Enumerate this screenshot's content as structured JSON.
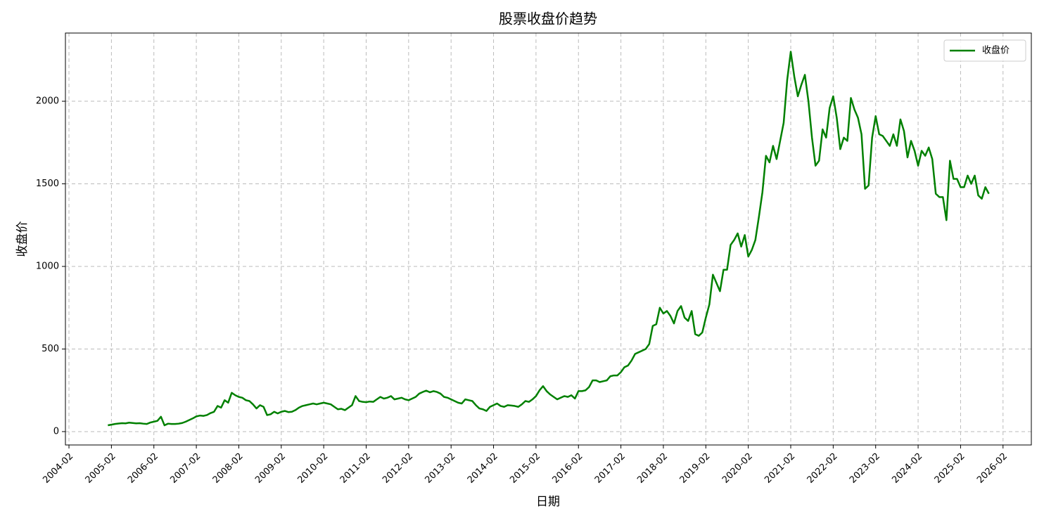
{
  "chart_data": {
    "type": "line",
    "title": "股票收盘价趋势",
    "x_label": "日期",
    "y_label": "收盘价",
    "x": [
      "2005-01",
      "2005-02",
      "2005-03",
      "2005-04",
      "2005-05",
      "2005-06",
      "2005-07",
      "2005-08",
      "2005-09",
      "2005-10",
      "2005-11",
      "2005-12",
      "2006-01",
      "2006-02",
      "2006-03",
      "2006-04",
      "2006-05",
      "2006-06",
      "2006-07",
      "2006-08",
      "2006-09",
      "2006-10",
      "2006-11",
      "2006-12",
      "2007-01",
      "2007-02",
      "2007-03",
      "2007-04",
      "2007-05",
      "2007-06",
      "2007-07",
      "2007-08",
      "2007-09",
      "2007-10",
      "2007-11",
      "2007-12",
      "2008-01",
      "2008-02",
      "2008-03",
      "2008-04",
      "2008-05",
      "2008-06",
      "2008-07",
      "2008-08",
      "2008-09",
      "2008-10",
      "2008-11",
      "2008-12",
      "2009-01",
      "2009-02",
      "2009-03",
      "2009-04",
      "2009-05",
      "2009-06",
      "2009-07",
      "2009-08",
      "2009-09",
      "2009-10",
      "2009-11",
      "2009-12",
      "2010-01",
      "2010-02",
      "2010-03",
      "2010-04",
      "2010-05",
      "2010-06",
      "2010-07",
      "2010-08",
      "2010-09",
      "2010-10",
      "2010-11",
      "2010-12",
      "2011-01",
      "2011-02",
      "2011-03",
      "2011-04",
      "2011-05",
      "2011-06",
      "2011-07",
      "2011-08",
      "2011-09",
      "2011-10",
      "2011-11",
      "2011-12",
      "2012-01",
      "2012-02",
      "2012-03",
      "2012-04",
      "2012-05",
      "2012-06",
      "2012-07",
      "2012-08",
      "2012-09",
      "2012-10",
      "2012-11",
      "2012-12",
      "2013-01",
      "2013-02",
      "2013-03",
      "2013-04",
      "2013-05",
      "2013-06",
      "2013-07",
      "2013-08",
      "2013-09",
      "2013-10",
      "2013-11",
      "2013-12",
      "2014-01",
      "2014-02",
      "2014-03",
      "2014-04",
      "2014-05",
      "2014-06",
      "2014-07",
      "2014-08",
      "2014-09",
      "2014-10",
      "2014-11",
      "2014-12",
      "2015-01",
      "2015-02",
      "2015-03",
      "2015-04",
      "2015-05",
      "2015-06",
      "2015-07",
      "2015-08",
      "2015-09",
      "2015-10",
      "2015-11",
      "2015-12",
      "2016-01",
      "2016-02",
      "2016-03",
      "2016-04",
      "2016-05",
      "2016-06",
      "2016-07",
      "2016-08",
      "2016-09",
      "2016-10",
      "2016-11",
      "2016-12",
      "2017-01",
      "2017-02",
      "2017-03",
      "2017-04",
      "2017-05",
      "2017-06",
      "2017-07",
      "2017-08",
      "2017-09",
      "2017-10",
      "2017-11",
      "2017-12",
      "2018-01",
      "2018-02",
      "2018-03",
      "2018-04",
      "2018-05",
      "2018-06",
      "2018-07",
      "2018-08",
      "2018-09",
      "2018-10",
      "2018-11",
      "2018-12",
      "2019-01",
      "2019-02",
      "2019-03",
      "2019-04",
      "2019-05",
      "2019-06",
      "2019-07",
      "2019-08",
      "2019-09",
      "2019-10",
      "2019-11",
      "2019-12",
      "2020-01",
      "2020-02",
      "2020-03",
      "2020-04",
      "2020-05",
      "2020-06",
      "2020-07",
      "2020-08",
      "2020-09",
      "2020-10",
      "2020-11",
      "2020-12",
      "2021-01",
      "2021-02",
      "2021-03",
      "2021-04",
      "2021-05",
      "2021-06",
      "2021-07",
      "2021-08",
      "2021-09",
      "2021-10",
      "2021-11",
      "2021-12",
      "2022-01",
      "2022-02",
      "2022-03",
      "2022-04",
      "2022-05",
      "2022-06",
      "2022-07",
      "2022-08",
      "2022-09",
      "2022-10",
      "2022-11",
      "2022-12",
      "2023-01",
      "2023-02",
      "2023-03",
      "2023-04",
      "2023-05",
      "2023-06",
      "2023-07",
      "2023-08",
      "2023-09",
      "2023-10",
      "2023-11",
      "2023-12",
      "2024-01",
      "2024-02",
      "2024-03",
      "2024-04",
      "2024-05",
      "2024-06",
      "2024-07",
      "2024-08",
      "2024-09",
      "2024-10",
      "2024-11",
      "2024-12",
      "2025-01",
      "2025-02",
      "2025-03",
      "2025-04",
      "2025-05",
      "2025-06",
      "2025-07",
      "2025-08",
      "2025-09",
      "2025-10"
    ],
    "series": [
      {
        "name": "收盘价",
        "color": "#008000",
        "values": [
          38,
          42,
          46,
          49,
          51,
          50,
          54,
          52,
          50,
          51,
          48,
          46,
          55,
          60,
          65,
          90,
          38,
          48,
          46,
          46,
          48,
          52,
          60,
          70,
          80,
          92,
          97,
          95,
          100,
          112,
          120,
          155,
          145,
          190,
          175,
          235,
          220,
          210,
          205,
          190,
          185,
          165,
          140,
          160,
          150,
          100,
          105,
          120,
          110,
          120,
          125,
          118,
          120,
          130,
          145,
          155,
          160,
          165,
          170,
          165,
          170,
          175,
          170,
          165,
          150,
          135,
          138,
          130,
          145,
          160,
          215,
          185,
          180,
          178,
          182,
          180,
          195,
          210,
          200,
          205,
          215,
          195,
          200,
          205,
          195,
          190,
          200,
          210,
          230,
          240,
          248,
          238,
          245,
          240,
          230,
          210,
          205,
          195,
          185,
          175,
          170,
          195,
          190,
          185,
          160,
          140,
          135,
          125,
          150,
          160,
          170,
          155,
          150,
          160,
          158,
          155,
          150,
          165,
          185,
          180,
          195,
          215,
          250,
          275,
          245,
          225,
          210,
          195,
          205,
          215,
          210,
          220,
          200,
          245,
          245,
          250,
          270,
          310,
          310,
          300,
          305,
          310,
          335,
          340,
          340,
          360,
          390,
          400,
          430,
          470,
          480,
          490,
          500,
          530,
          640,
          650,
          750,
          715,
          730,
          700,
          655,
          730,
          760,
          690,
          670,
          730,
          590,
          580,
          600,
          690,
          770,
          950,
          900,
          850,
          980,
          980,
          1130,
          1160,
          1200,
          1120,
          1190,
          1060,
          1100,
          1160,
          1300,
          1450,
          1670,
          1630,
          1730,
          1650,
          1760,
          1870,
          2130,
          2300,
          2150,
          2030,
          2100,
          2160,
          2000,
          1780,
          1610,
          1640,
          1830,
          1780,
          1960,
          2030,
          1900,
          1710,
          1780,
          1760,
          2020,
          1950,
          1900,
          1800,
          1470,
          1490,
          1780,
          1910,
          1800,
          1790,
          1760,
          1730,
          1800,
          1730,
          1890,
          1820,
          1660,
          1760,
          1700,
          1610,
          1700,
          1670,
          1720,
          1650,
          1440,
          1420,
          1420,
          1280,
          1640,
          1530,
          1530,
          1480,
          1480,
          1550,
          1500,
          1550,
          1430,
          1410,
          1480,
          1440
        ]
      }
    ],
    "xlim": [
      "2004-01",
      "2026-10"
    ],
    "xticks": [
      "2004-02",
      "2005-02",
      "2006-02",
      "2007-02",
      "2008-02",
      "2009-02",
      "2010-02",
      "2011-02",
      "2012-02",
      "2013-02",
      "2014-02",
      "2015-02",
      "2016-02",
      "2017-02",
      "2018-02",
      "2019-02",
      "2020-02",
      "2021-02",
      "2022-02",
      "2023-02",
      "2024-02",
      "2025-02",
      "2026-02"
    ],
    "ylim": [
      -81,
      2413
    ],
    "yticks": [
      0,
      500,
      1000,
      1500,
      2000
    ],
    "grid": true,
    "legend": "upper right"
  }
}
